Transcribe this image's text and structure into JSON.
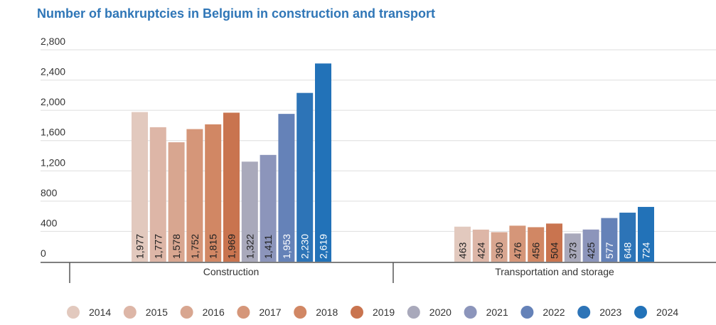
{
  "chart_data": {
    "type": "bar",
    "title": "Number of bankruptcies in Belgium in construction and transport",
    "categories": [
      "Construction",
      "Transportation and storage"
    ],
    "series": [
      {
        "name": "2014",
        "color": "#e2c9be",
        "label_color": "#222222",
        "values": [
          1977,
          463
        ]
      },
      {
        "name": "2015",
        "color": "#ddb6a7",
        "label_color": "#222222",
        "values": [
          1777,
          424
        ]
      },
      {
        "name": "2016",
        "color": "#d8a690",
        "label_color": "#222222",
        "values": [
          1578,
          390
        ]
      },
      {
        "name": "2017",
        "color": "#d59679",
        "label_color": "#222222",
        "values": [
          1752,
          476
        ]
      },
      {
        "name": "2018",
        "color": "#d18764",
        "label_color": "#222222",
        "values": [
          1815,
          456
        ]
      },
      {
        "name": "2019",
        "color": "#c9744f",
        "label_color": "#222222",
        "values": [
          1969,
          504
        ]
      },
      {
        "name": "2020",
        "color": "#a9a9bb",
        "label_color": "#222222",
        "values": [
          1322,
          373
        ]
      },
      {
        "name": "2021",
        "color": "#8c95bb",
        "label_color": "#222222",
        "values": [
          1411,
          425
        ]
      },
      {
        "name": "2022",
        "color": "#6582b8",
        "label_color": "#ffffff",
        "values": [
          1953,
          577
        ]
      },
      {
        "name": "2023",
        "color": "#2d74b7",
        "label_color": "#ffffff",
        "values": [
          2230,
          648
        ]
      },
      {
        "name": "2024",
        "color": "#2272b8",
        "label_color": "#ffffff",
        "values": [
          2619,
          724
        ]
      }
    ],
    "y_ticks": [
      "0",
      "400",
      "800",
      "1,200",
      "1,600",
      "2,000",
      "2,400",
      "2,800"
    ],
    "ylim": [
      0,
      2800
    ],
    "grid": true,
    "legend_position": "bottom"
  }
}
